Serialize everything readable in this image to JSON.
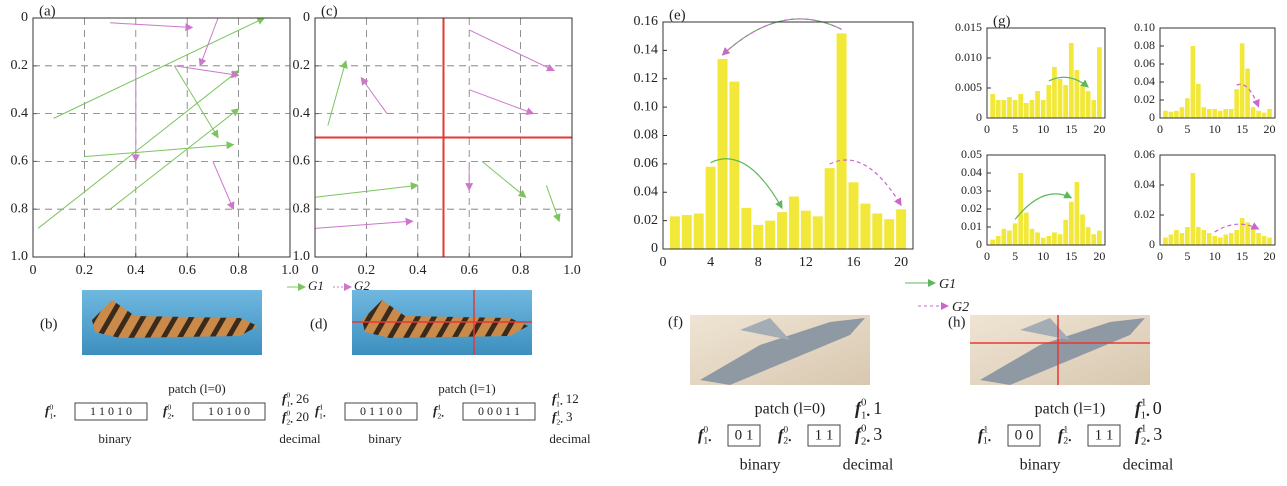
{
  "chart_data": [
    {
      "type": "vector",
      "label": "(a)",
      "xlim": [
        0,
        1
      ],
      "ylim": [
        0,
        1
      ],
      "y_inverted": true,
      "grid": true,
      "xticks": [
        0,
        0.2,
        0.4,
        0.6,
        0.8,
        {
          "value": 1,
          "label": "1.0"
        }
      ],
      "yticks": [
        0,
        0.2,
        0.4,
        0.6,
        0.8,
        {
          "value": 1,
          "label": "1.0"
        }
      ],
      "series": [
        {
          "color": "#7cc45e",
          "x1": [
            0.08,
            0.02,
            0.2,
            0.3,
            0.55
          ],
          "y1": [
            0.42,
            0.88,
            0.58,
            0.8,
            0.2
          ],
          "x2": [
            0.9,
            0.8,
            0.78,
            0.8,
            0.72
          ],
          "y2": [
            0.0,
            0.22,
            0.53,
            0.38,
            0.5
          ]
        },
        {
          "color": "#cc77cc",
          "x1": [
            0.3,
            0.72,
            0.4,
            0.55,
            0.7
          ],
          "y1": [
            0.02,
            0.0,
            0.2,
            0.2,
            0.6
          ],
          "x2": [
            0.62,
            0.65,
            0.4,
            0.8,
            0.78
          ],
          "y2": [
            0.04,
            0.2,
            0.6,
            0.24,
            0.8
          ]
        }
      ]
    },
    {
      "type": "vector",
      "label": "(c)",
      "xlim": [
        0,
        1
      ],
      "ylim": [
        0,
        1
      ],
      "y_inverted": true,
      "grid": true,
      "legend": "bottom-left",
      "xticks": [
        0,
        0.2,
        0.4,
        0.6,
        0.8,
        {
          "value": 1,
          "label": "1.0"
        }
      ],
      "yticks": [
        0,
        0.2,
        0.4,
        0.6,
        0.8,
        {
          "value": 1,
          "label": "1.0"
        }
      ],
      "split": {
        "x": 0.5,
        "y": 0.5,
        "color": "#e53935"
      },
      "series": [
        {
          "name": "G1",
          "color": "#7cc45e",
          "x1": [
            0.05,
            0.0,
            0.65,
            0.9
          ],
          "y1": [
            0.45,
            0.75,
            0.6,
            0.7
          ],
          "x2": [
            0.12,
            0.4,
            0.82,
            0.95
          ],
          "y2": [
            0.18,
            0.7,
            0.75,
            0.85
          ]
        },
        {
          "name": "G2",
          "color": "#cc77cc",
          "x1": [
            0.6,
            0.6,
            0.28,
            0.0,
            0.6
          ],
          "y1": [
            0.05,
            0.3,
            0.4,
            0.88,
            0.62
          ],
          "x2": [
            0.93,
            0.85,
            0.18,
            0.38,
            0.6
          ],
          "y2": [
            0.22,
            0.4,
            0.25,
            0.85,
            0.72
          ]
        }
      ]
    },
    {
      "type": "bar",
      "label": "(e)",
      "color": "#f2e83a",
      "xlim": [
        0,
        21
      ],
      "ylim": [
        0,
        0.16
      ],
      "xticks": [
        0,
        4,
        8,
        12,
        16,
        20
      ],
      "yticks": [
        0,
        0.02,
        0.04,
        0.06,
        0.08,
        {
          "value": 0.1,
          "label": "0.10"
        },
        0.12,
        0.14,
        0.16
      ],
      "x": [
        1,
        2,
        3,
        4,
        5,
        6,
        7,
        8,
        9,
        10,
        11,
        12,
        13,
        14,
        15,
        16,
        17,
        18,
        19,
        20
      ],
      "values": [
        0.023,
        0.024,
        0.025,
        0.058,
        0.134,
        0.118,
        0.029,
        0.017,
        0.02,
        0.026,
        0.037,
        0.027,
        0.023,
        0.057,
        0.152,
        0.047,
        0.032,
        0.025,
        0.021,
        0.028
      ],
      "arc_series": [
        {
          "name": "G1",
          "color": "#5cb85c"
        },
        {
          "name": "G2",
          "color": "#cc66cc",
          "dashed": true
        }
      ],
      "arcs": [
        {
          "group": 0,
          "from": 15,
          "to": 5
        },
        {
          "group": 0,
          "from": 4,
          "to": 10
        },
        {
          "group": 1,
          "from": 15,
          "to": 5
        },
        {
          "group": 1,
          "from": 14,
          "to": 20
        }
      ]
    },
    {
      "type": "bar",
      "label": "(g)",
      "color": "#f2e83a",
      "xlim": [
        0,
        21
      ],
      "ylim": [
        0,
        0.015
      ],
      "xticks": [
        0,
        5,
        10,
        15,
        20
      ],
      "yticks": [
        0,
        0.005,
        {
          "value": 0.01,
          "label": "0.010"
        },
        0.015
      ],
      "x": [
        1,
        2,
        3,
        4,
        5,
        6,
        7,
        8,
        9,
        10,
        11,
        12,
        13,
        14,
        15,
        16,
        17,
        18,
        19,
        20
      ],
      "values": [
        0.004,
        0.003,
        0.003,
        0.0035,
        0.003,
        0.004,
        0.0025,
        0.003,
        0.0045,
        0.003,
        0.0055,
        0.0085,
        0.0065,
        0.0055,
        0.0125,
        0.008,
        0.0055,
        0.0045,
        0.003,
        0.0118
      ],
      "arcs": [
        {
          "group": 0,
          "from": 11,
          "to": 18
        }
      ]
    },
    {
      "type": "bar",
      "color": "#f2e83a",
      "xlim": [
        0,
        21
      ],
      "ylim": [
        0,
        0.1
      ],
      "xticks": [
        0,
        5,
        10,
        15,
        20
      ],
      "yticks": [
        0,
        0.02,
        0.04,
        0.06,
        0.08,
        {
          "value": 0.1,
          "label": "0.10"
        }
      ],
      "x": [
        1,
        2,
        3,
        4,
        5,
        6,
        7,
        8,
        9,
        10,
        11,
        12,
        13,
        14,
        15,
        16,
        17,
        18,
        19,
        20
      ],
      "values": [
        0.008,
        0.007,
        0.008,
        0.012,
        0.022,
        0.08,
        0.038,
        0.012,
        0.01,
        0.01,
        0.008,
        0.01,
        0.01,
        0.032,
        0.083,
        0.055,
        0.012,
        0.008,
        0.006,
        0.01
      ],
      "arcs": [
        {
          "group": 1,
          "from": 14,
          "to": 18
        }
      ]
    },
    {
      "type": "bar",
      "color": "#f2e83a",
      "xlim": [
        0,
        21
      ],
      "ylim": [
        0,
        0.05
      ],
      "xticks": [
        0,
        5,
        10,
        15,
        20
      ],
      "yticks": [
        0,
        0.01,
        0.02,
        0.03,
        0.04,
        0.05
      ],
      "x": [
        1,
        2,
        3,
        4,
        5,
        6,
        7,
        8,
        9,
        10,
        11,
        12,
        13,
        14,
        15,
        16,
        17,
        18,
        19,
        20
      ],
      "values": [
        0.003,
        0.005,
        0.009,
        0.008,
        0.012,
        0.04,
        0.018,
        0.009,
        0.007,
        0.004,
        0.005,
        0.007,
        0.006,
        0.014,
        0.024,
        0.035,
        0.017,
        0.01,
        0.006,
        0.008
      ],
      "arcs": [
        {
          "group": 0,
          "from": 5,
          "to": 15
        }
      ]
    },
    {
      "type": "bar",
      "color": "#f2e83a",
      "xlim": [
        0,
        21
      ],
      "ylim": [
        0,
        0.06
      ],
      "xticks": [
        0,
        5,
        10,
        15,
        20
      ],
      "yticks": [
        0,
        0.02,
        0.04,
        0.06
      ],
      "x": [
        1,
        2,
        3,
        4,
        5,
        6,
        7,
        8,
        9,
        10,
        11,
        12,
        13,
        14,
        15,
        16,
        17,
        18,
        19,
        20
      ],
      "values": [
        0.005,
        0.007,
        0.01,
        0.008,
        0.012,
        0.048,
        0.012,
        0.01,
        0.008,
        0.006,
        0.005,
        0.007,
        0.008,
        0.01,
        0.018,
        0.015,
        0.012,
        0.008,
        0.006,
        0.005
      ],
      "arcs": [
        {
          "group": 1,
          "from": 10,
          "to": 18
        }
      ]
    }
  ],
  "symbol": "f",
  "panels": [
    {
      "label": "(b)",
      "patch": "patch (l=0)",
      "binary": "binary",
      "decimal": "decimal",
      "codes": [
        {
          "sub": "1•",
          "sup": "0",
          "bits": "1 1 0 1 0",
          "value": 26
        },
        {
          "sub": "2•",
          "sup": "0",
          "bits": "1 0 1 0 0",
          "value": 20
        }
      ]
    },
    {
      "label": "(d)",
      "patch": "patch (l=1)",
      "binary": "binary",
      "decimal": "decimal",
      "codes": [
        {
          "sub": "1•",
          "sup": "1",
          "bits": "0 1 1 0 0",
          "value": 12
        },
        {
          "sub": "2•",
          "sup": "1",
          "bits": "0 0 0 1 1",
          "value": 3
        }
      ]
    },
    {
      "label": "(f)",
      "patch": "patch (l=0)",
      "binary": "binary",
      "decimal": "decimal",
      "codes": [
        {
          "sub": "1•",
          "sup": "0",
          "bits": "0 1",
          "value": 1
        },
        {
          "sub": "2•",
          "sup": "0",
          "bits": "1 1",
          "value": 3
        }
      ]
    },
    {
      "label": "(h)",
      "patch": "patch (l=1)",
      "binary": "binary",
      "decimal": "decimal",
      "codes": [
        {
          "sub": "1•",
          "sup": "1",
          "bits": "0 0",
          "value": 0
        },
        {
          "sub": "2•",
          "sup": "1",
          "bits": "1 1",
          "value": 3
        }
      ]
    }
  ]
}
